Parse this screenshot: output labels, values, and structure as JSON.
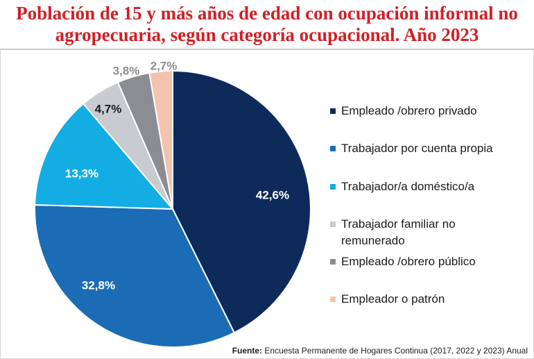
{
  "chart_data": {
    "type": "pie",
    "title": "Población de 15 y más años de edad con ocupación informal no agropecuaria, según categoría ocupacional. Año 2023",
    "slices": [
      {
        "label": "Empleado /obrero privado",
        "value": 42.6,
        "display": "42,6%",
        "color": "#0d2a5b",
        "label_color": "#ffffff"
      },
      {
        "label": "Trabajador por cuenta propia",
        "value": 32.8,
        "display": "32,8%",
        "color": "#1b6cb5",
        "label_color": "#ffffff"
      },
      {
        "label": "Trabajador/a doméstico/a",
        "value": 13.3,
        "display": "13,3%",
        "color": "#13ade4",
        "label_color": "#ffffff"
      },
      {
        "label": "Trabajador familiar no remunerado",
        "value": 4.7,
        "display": "4,7%",
        "color": "#c9cbd0",
        "label_color": "#1b1b1b"
      },
      {
        "label": "Empleado /obrero público",
        "value": 3.8,
        "display": "3,8%",
        "color": "#8b8d93",
        "label_color": "#8b8d93"
      },
      {
        "label": "Empleador o patrón",
        "value": 2.7,
        "display": "2,7%",
        "color": "#f4c3ad",
        "label_color": "#8b8d93"
      }
    ],
    "legend_placement": "right"
  },
  "source": {
    "label": "Fuente:",
    "text": "Encuesta Permanente de Hogares Continua (2017, 2022 y 2023) Anual"
  }
}
